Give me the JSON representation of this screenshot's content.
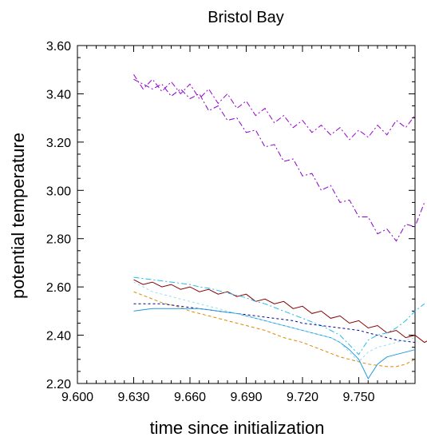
{
  "chart_data": {
    "type": "line",
    "title": "Bristol Bay",
    "xlabel": "time since initialization",
    "ylabel": "potential temperature",
    "xlim": [
      9.6,
      9.78
    ],
    "ylim": [
      2.2,
      3.6
    ],
    "xticks": [
      "9.600",
      "9.630",
      "9.660",
      "9.690",
      "9.720",
      "9.750"
    ],
    "yticks": [
      "2.20",
      "2.40",
      "2.60",
      "2.80",
      "3.00",
      "3.20",
      "3.40",
      "3.60"
    ],
    "x_start": 9.63,
    "x_step": 0.005,
    "series": [
      {
        "color": "#9900cc",
        "dash": "7,3,2,3",
        "values": [
          3.48,
          3.42,
          3.46,
          3.41,
          3.45,
          3.4,
          3.44,
          3.38,
          3.42,
          3.36,
          3.4,
          3.34,
          3.37,
          3.31,
          3.34,
          3.28,
          3.31,
          3.26,
          3.29,
          3.24,
          3.27,
          3.23,
          3.26,
          3.21,
          3.25,
          3.22,
          3.27,
          3.23,
          3.29,
          3.26,
          3.31
        ]
      },
      {
        "color": "#8800cc",
        "dash": "7,3,2,3",
        "values": [
          3.46,
          3.44,
          3.42,
          3.44,
          3.39,
          3.42,
          3.38,
          3.4,
          3.33,
          3.35,
          3.29,
          3.3,
          3.24,
          3.25,
          3.18,
          3.19,
          3.12,
          3.13,
          3.06,
          3.07,
          3.0,
          3.02,
          2.95,
          2.96,
          2.89,
          2.89,
          2.82,
          2.84,
          2.79,
          2.86,
          2.85,
          2.95
        ]
      },
      {
        "color": "#880000",
        "dash": "",
        "values": [
          2.63,
          2.61,
          2.62,
          2.6,
          2.61,
          2.59,
          2.6,
          2.58,
          2.59,
          2.57,
          2.58,
          2.56,
          2.57,
          2.54,
          2.55,
          2.53,
          2.54,
          2.51,
          2.52,
          2.49,
          2.5,
          2.47,
          2.48,
          2.45,
          2.46,
          2.43,
          2.44,
          2.41,
          2.42,
          2.39,
          2.4,
          2.37,
          2.39
        ]
      },
      {
        "color": "#22bbee",
        "dash": "7,3,2,3",
        "values": [
          2.64,
          2.635,
          2.63,
          2.625,
          2.62,
          2.615,
          2.61,
          2.6,
          2.595,
          2.585,
          2.575,
          2.565,
          2.555,
          2.54,
          2.53,
          2.515,
          2.5,
          2.485,
          2.47,
          2.455,
          2.44,
          2.42,
          2.4,
          2.36,
          2.32,
          2.38,
          2.4,
          2.41,
          2.43,
          2.46,
          2.5,
          2.53
        ]
      },
      {
        "color": "#dd8800",
        "dash": "4,3",
        "values": [
          2.58,
          2.565,
          2.55,
          2.535,
          2.525,
          2.515,
          2.5,
          2.49,
          2.48,
          2.47,
          2.46,
          2.45,
          2.44,
          2.43,
          2.42,
          2.405,
          2.39,
          2.38,
          2.37,
          2.355,
          2.34,
          2.325,
          2.31,
          2.3,
          2.29,
          2.28,
          2.275,
          2.27,
          2.27,
          2.28,
          2.3
        ]
      },
      {
        "color": "#000099",
        "dash": "3,3",
        "values": [
          2.53,
          2.53,
          2.53,
          2.53,
          2.525,
          2.52,
          2.515,
          2.51,
          2.505,
          2.5,
          2.495,
          2.49,
          2.485,
          2.48,
          2.475,
          2.47,
          2.465,
          2.46,
          2.45,
          2.445,
          2.44,
          2.435,
          2.43,
          2.425,
          2.42,
          2.41,
          2.4,
          2.39,
          2.38,
          2.375,
          2.37
        ]
      },
      {
        "color": "#2299dd",
        "dash": "",
        "values": [
          2.5,
          2.505,
          2.51,
          2.51,
          2.51,
          2.51,
          2.51,
          2.51,
          2.505,
          2.5,
          2.495,
          2.49,
          2.48,
          2.47,
          2.46,
          2.45,
          2.44,
          2.43,
          2.42,
          2.41,
          2.4,
          2.39,
          2.37,
          2.34,
          2.3,
          2.22,
          2.28,
          2.31,
          2.32,
          2.33,
          2.34
        ]
      },
      {
        "color": "#99ddee",
        "dash": "3,3",
        "values": [
          2.62,
          2.6,
          2.58,
          2.57,
          2.56,
          2.55,
          2.54,
          2.53,
          2.52,
          2.51,
          2.5,
          2.49,
          2.48,
          2.47,
          2.46,
          2.45,
          2.44,
          2.43,
          2.42,
          2.41,
          2.4,
          2.39,
          2.37,
          2.33,
          2.29,
          2.33,
          2.35,
          2.36,
          2.37,
          2.38,
          2.39
        ]
      }
    ]
  }
}
